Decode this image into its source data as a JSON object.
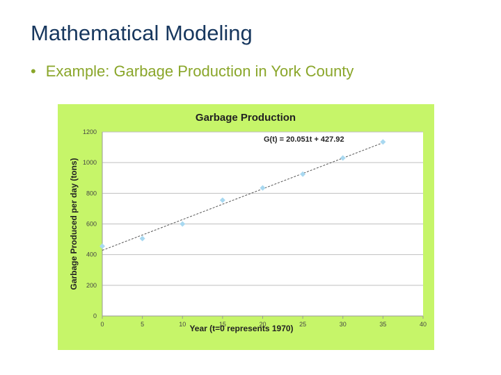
{
  "slide": {
    "title": "Mathematical Modeling",
    "bullet": "Example: Garbage Production in York County"
  },
  "colors": {
    "title": "#17375e",
    "bullet": "#8aa62a",
    "chart_background": "#c6f569",
    "plot_background": "#ffffff",
    "points": "#a8d8f0",
    "trendline": "#555555",
    "gridline": "#bfbfbf"
  },
  "chart_data": {
    "type": "scatter",
    "title": "Garbage Production",
    "xlabel": "Year (t=0 represents 1970)",
    "ylabel": "Garbage Produced per day (tons)",
    "xlim": [
      0,
      40
    ],
    "ylim": [
      0,
      1200
    ],
    "xticks": [
      0,
      5,
      10,
      15,
      20,
      25,
      30,
      35,
      40
    ],
    "yticks": [
      0,
      200,
      400,
      600,
      800,
      1000,
      1200
    ],
    "grid": "horizontal",
    "series": [
      {
        "x": [
          0,
          5,
          10,
          15,
          20,
          25,
          30,
          35
        ],
        "y": [
          455,
          505,
          600,
          755,
          835,
          925,
          1030,
          1135
        ]
      }
    ],
    "trendline": {
      "slope": 20.051,
      "intercept": 427.92,
      "label": "G(t) = 20.051t + 427.92"
    }
  }
}
